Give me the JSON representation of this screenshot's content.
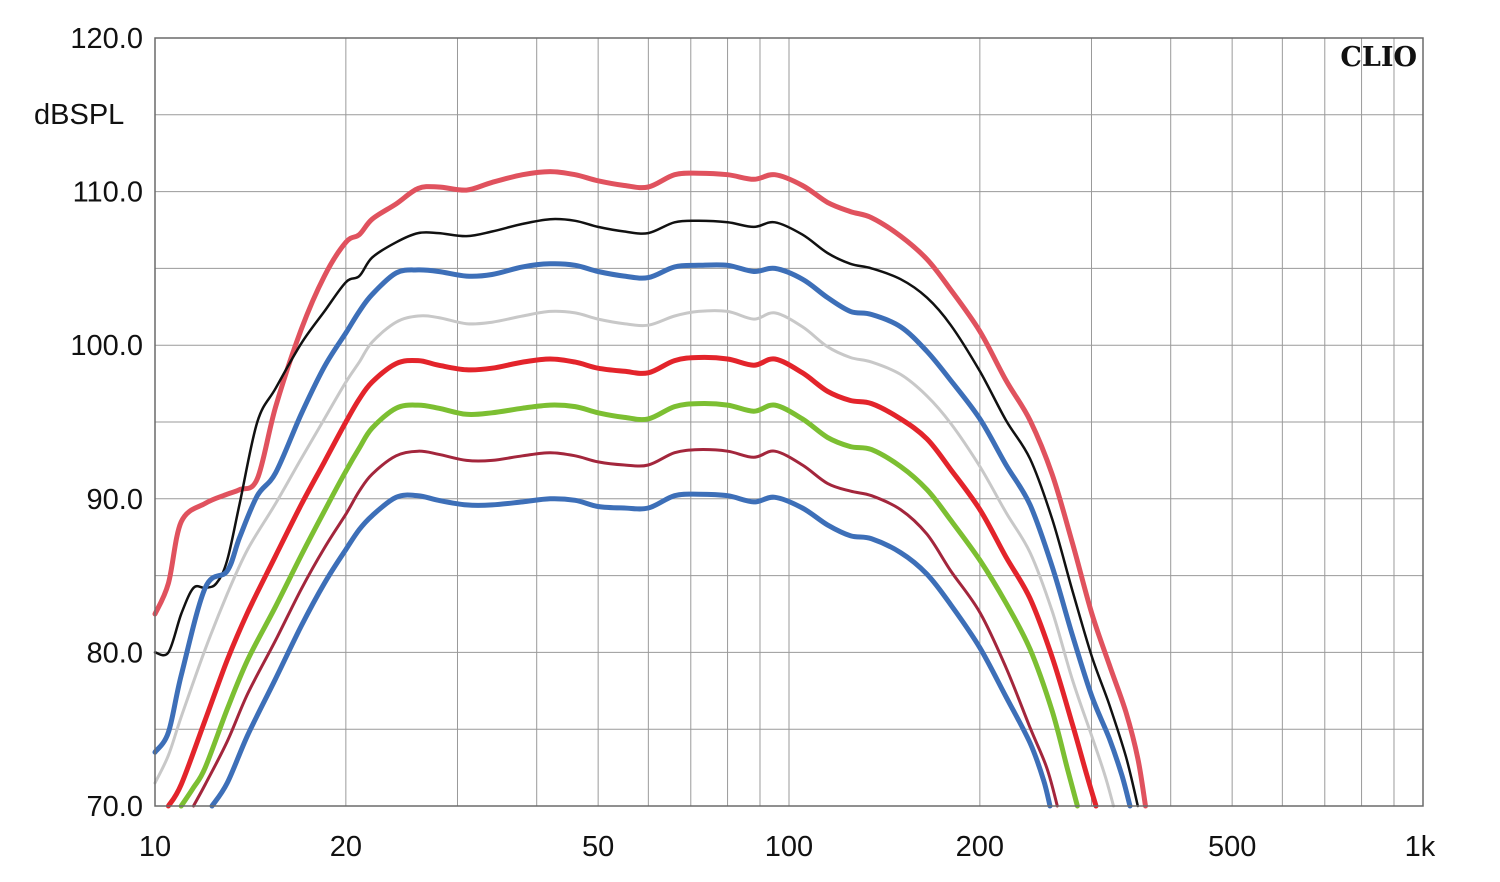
{
  "chart_data": {
    "type": "line",
    "title": "",
    "brand": "CLIO",
    "xlabel": "",
    "ylabel": "dBSPL",
    "x_scale": "log",
    "xlim": [
      10,
      1000
    ],
    "ylim": [
      70,
      120
    ],
    "grid": true,
    "legend": "none",
    "x_ticks": [
      {
        "value": 10,
        "label": "10"
      },
      {
        "value": 20,
        "label": "20"
      },
      {
        "value": 50,
        "label": "50"
      },
      {
        "value": 100,
        "label": "100"
      },
      {
        "value": 200,
        "label": "200"
      },
      {
        "value": 500,
        "label": "500"
      },
      {
        "value": 1000,
        "label": "1k"
      }
    ],
    "y_ticks": [
      {
        "value": 70,
        "label": "70.0"
      },
      {
        "value": 80,
        "label": "80.0"
      },
      {
        "value": 90,
        "label": "90.0"
      },
      {
        "value": 100,
        "label": "100.0"
      },
      {
        "value": 110,
        "label": "110.0"
      },
      {
        "value": 120,
        "label": "120.0"
      }
    ],
    "series": [
      {
        "color": "#e0525e",
        "width": 5,
        "x": [
          10,
          10.5,
          11,
          12,
          13,
          13.6,
          14.5,
          15.5,
          17,
          18.5,
          20,
          21,
          22,
          24,
          26,
          28,
          31,
          34,
          38,
          42,
          46,
          50,
          55,
          60,
          66,
          72,
          80,
          88,
          95,
          105,
          115,
          125,
          135,
          150,
          165,
          180,
          200,
          220,
          240,
          260,
          280,
          300,
          320,
          340,
          355,
          365
        ],
        "y": [
          82.5,
          84.5,
          88.5,
          89.7,
          90.3,
          90.6,
          91.3,
          96,
          101,
          104.5,
          106.7,
          107.2,
          108.2,
          109.2,
          110.2,
          110.3,
          110.1,
          110.6,
          111.1,
          111.3,
          111.1,
          110.7,
          110.4,
          110.3,
          111.1,
          111.2,
          111.1,
          110.8,
          111.1,
          110.4,
          109.3,
          108.7,
          108.3,
          107.1,
          105.6,
          103.6,
          100.9,
          97.7,
          95.1,
          91.6,
          87.1,
          82.6,
          79.2,
          76.1,
          73.1,
          70.0
        ]
      },
      {
        "color": "#111111",
        "width": 2.5,
        "x": [
          10,
          10.5,
          11,
          11.5,
          12,
          12.5,
          13,
          13.6,
          14.5,
          15.5,
          17,
          18.5,
          20,
          21,
          22,
          24,
          26,
          28,
          31,
          34,
          38,
          42,
          46,
          50,
          55,
          60,
          66,
          72,
          80,
          88,
          95,
          105,
          115,
          125,
          135,
          150,
          165,
          180,
          200,
          220,
          240,
          260,
          280,
          300,
          320,
          340,
          355
        ],
        "y": [
          80.0,
          80.0,
          82.5,
          84.2,
          84.2,
          84.5,
          86,
          89.7,
          95,
          97.2,
          100.1,
          102.2,
          104.1,
          104.5,
          105.7,
          106.7,
          107.3,
          107.3,
          107.1,
          107.4,
          107.9,
          108.2,
          108.1,
          107.7,
          107.4,
          107.3,
          108.0,
          108.1,
          108.0,
          107.7,
          108.0,
          107.2,
          106.0,
          105.3,
          105.0,
          104.3,
          103.1,
          101.3,
          98.3,
          95.1,
          92.6,
          88.7,
          84.0,
          79.8,
          76.6,
          73.2,
          70.0
        ]
      },
      {
        "color": "#3d6fb8",
        "width": 5,
        "x": [
          10,
          10.5,
          11,
          12,
          13,
          13.6,
          14.5,
          15.5,
          17,
          18.5,
          20,
          21,
          22,
          24,
          26,
          28,
          31,
          34,
          38,
          42,
          46,
          50,
          55,
          60,
          66,
          72,
          80,
          88,
          95,
          105,
          115,
          125,
          135,
          150,
          165,
          180,
          200,
          220,
          240,
          260,
          280,
          300,
          320,
          335,
          345
        ],
        "y": [
          73.5,
          74.8,
          78.5,
          84.2,
          85.3,
          87.5,
          90.2,
          91.7,
          95.5,
          98.6,
          100.8,
          102.2,
          103.3,
          104.7,
          104.9,
          104.8,
          104.5,
          104.6,
          105.1,
          105.3,
          105.2,
          104.8,
          104.5,
          104.4,
          105.1,
          105.2,
          105.2,
          104.8,
          105.0,
          104.3,
          103.1,
          102.2,
          102.0,
          101.2,
          99.6,
          97.7,
          95.2,
          92.2,
          89.6,
          85.6,
          81.1,
          77.2,
          74.4,
          72.0,
          70.0
        ]
      },
      {
        "color": "#c8c8c8",
        "width": 3,
        "x": [
          10,
          10.5,
          11,
          12,
          13,
          14,
          15.5,
          17,
          18.5,
          20,
          21,
          22,
          24,
          26,
          28,
          31,
          34,
          38,
          42,
          46,
          50,
          55,
          60,
          66,
          72,
          80,
          88,
          95,
          105,
          115,
          125,
          135,
          150,
          165,
          180,
          200,
          220,
          240,
          260,
          280,
          300,
          315,
          325
        ],
        "y": [
          71.5,
          73.3,
          75.8,
          80.2,
          83.8,
          86.7,
          89.7,
          92.6,
          95.2,
          97.6,
          98.9,
          100.2,
          101.5,
          101.9,
          101.8,
          101.4,
          101.5,
          101.9,
          102.2,
          102.1,
          101.7,
          101.4,
          101.3,
          101.9,
          102.2,
          102.2,
          101.7,
          102.1,
          101.2,
          99.9,
          99.2,
          98.9,
          98.1,
          96.7,
          94.9,
          92.1,
          89.1,
          86.5,
          82.7,
          78.2,
          74.6,
          72.0,
          70.0
        ]
      },
      {
        "color": "#e3242b",
        "width": 5,
        "x": [
          10.5,
          11,
          12,
          13,
          14,
          15.5,
          17,
          18.5,
          20,
          21,
          22,
          24,
          26,
          28,
          31,
          34,
          38,
          42,
          46,
          50,
          55,
          60,
          66,
          72,
          80,
          88,
          95,
          105,
          115,
          125,
          135,
          150,
          165,
          180,
          200,
          220,
          240,
          260,
          280,
          295,
          305
        ],
        "y": [
          70.0,
          71.4,
          75.6,
          79.5,
          82.6,
          86.3,
          89.6,
          92.4,
          95.0,
          96.5,
          97.6,
          98.8,
          99.0,
          98.7,
          98.4,
          98.5,
          98.9,
          99.1,
          98.9,
          98.5,
          98.3,
          98.2,
          99.0,
          99.2,
          99.1,
          98.7,
          99.1,
          98.2,
          97.0,
          96.4,
          96.2,
          95.2,
          93.9,
          91.9,
          89.3,
          86.2,
          83.5,
          79.7,
          75.3,
          72.0,
          70.0
        ]
      },
      {
        "color": "#7cbf32",
        "width": 5,
        "x": [
          11,
          11.5,
          12,
          13,
          14,
          15.5,
          17,
          18.5,
          20,
          21,
          22,
          24,
          26,
          28,
          31,
          34,
          38,
          42,
          46,
          50,
          55,
          60,
          66,
          72,
          80,
          88,
          95,
          105,
          115,
          125,
          135,
          150,
          165,
          180,
          200,
          220,
          240,
          260,
          275,
          285
        ],
        "y": [
          70.0,
          71.2,
          72.5,
          76.3,
          79.5,
          83.0,
          86.3,
          89.2,
          91.8,
          93.3,
          94.6,
          95.9,
          96.1,
          95.9,
          95.5,
          95.6,
          95.9,
          96.1,
          96.0,
          95.6,
          95.3,
          95.2,
          96.0,
          96.2,
          96.1,
          95.7,
          96.1,
          95.2,
          94.0,
          93.4,
          93.2,
          92.1,
          90.6,
          88.6,
          86.0,
          83.2,
          80.2,
          76.2,
          72.4,
          70.0
        ]
      },
      {
        "color": "#a3263c",
        "width": 3,
        "x": [
          11.5,
          12,
          13,
          14,
          15.5,
          17,
          18.5,
          20,
          21,
          22,
          24,
          26,
          28,
          31,
          34,
          38,
          42,
          46,
          50,
          55,
          60,
          66,
          72,
          80,
          88,
          95,
          105,
          115,
          125,
          135,
          150,
          165,
          180,
          200,
          220,
          240,
          255,
          265
        ],
        "y": [
          70.0,
          71.4,
          74.2,
          77.3,
          80.8,
          84.1,
          86.8,
          89.0,
          90.5,
          91.6,
          92.8,
          93.1,
          92.9,
          92.5,
          92.5,
          92.8,
          93.0,
          92.8,
          92.4,
          92.2,
          92.2,
          93.0,
          93.2,
          93.1,
          92.7,
          93.1,
          92.2,
          91.0,
          90.5,
          90.2,
          89.3,
          87.7,
          85.3,
          82.6,
          79.0,
          75.1,
          72.5,
          70.0
        ]
      },
      {
        "color": "#3d6fb8",
        "width": 5,
        "x": [
          12.3,
          13,
          14,
          15.5,
          17,
          18.5,
          20,
          21,
          22,
          24,
          26,
          28,
          31,
          34,
          38,
          42,
          46,
          50,
          55,
          60,
          66,
          72,
          80,
          88,
          95,
          105,
          115,
          125,
          135,
          150,
          165,
          180,
          200,
          220,
          240,
          252,
          258
        ],
        "y": [
          70.0,
          71.5,
          74.6,
          78.3,
          81.7,
          84.5,
          86.7,
          88.0,
          88.9,
          90.1,
          90.2,
          89.9,
          89.6,
          89.6,
          89.8,
          90.0,
          89.9,
          89.5,
          89.4,
          89.4,
          90.2,
          90.3,
          90.2,
          89.8,
          90.1,
          89.4,
          88.3,
          87.6,
          87.4,
          86.5,
          85.1,
          83.1,
          80.3,
          77.1,
          74.1,
          71.7,
          70.0
        ]
      }
    ]
  }
}
